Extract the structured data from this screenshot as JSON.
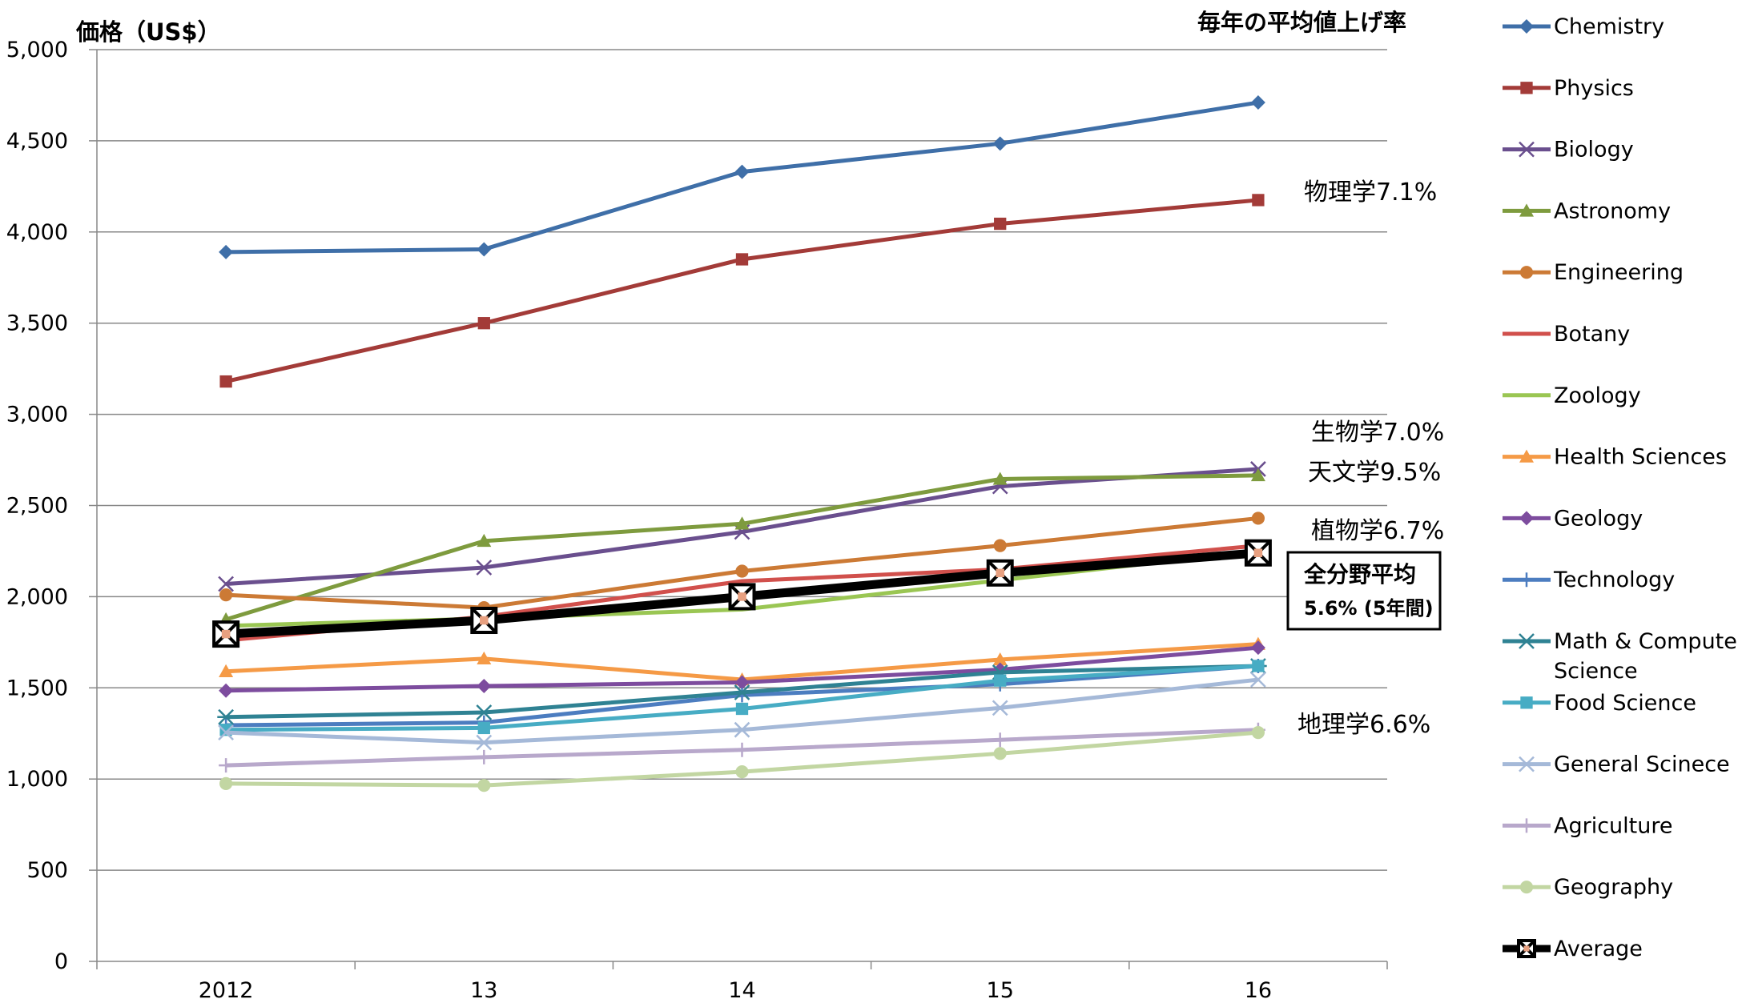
{
  "chart_data": {
    "type": "line",
    "ylabel": "価格（US$）",
    "legend_title": "毎年の平均値上げ率",
    "legend_position": "right",
    "categories": [
      "2012",
      "13",
      "14",
      "15",
      "16"
    ],
    "ylim": [
      0,
      5000
    ],
    "yticks": [
      "0",
      "500",
      "1,000",
      "1,500",
      "2,000",
      "2,500",
      "3,000",
      "3,500",
      "4,000",
      "4,500",
      "5,000"
    ],
    "grid": true,
    "series": [
      {
        "name": "Chemistry",
        "color": "#3F6FA8",
        "marker": "diamond",
        "values": [
          3890,
          3905,
          4330,
          4485,
          4710
        ]
      },
      {
        "name": "Physics",
        "color": "#A33B38",
        "marker": "square",
        "values": [
          3180,
          3500,
          3850,
          4045,
          4175
        ]
      },
      {
        "name": "Biology",
        "color": "#6A4F8E",
        "marker": "x",
        "values": [
          2070,
          2160,
          2355,
          2605,
          2700
        ]
      },
      {
        "name": "Astronomy",
        "color": "#7E9B3E",
        "marker": "triangle",
        "values": [
          1875,
          2305,
          2400,
          2645,
          2665
        ]
      },
      {
        "name": "Engineering",
        "color": "#CC7A35",
        "marker": "circle",
        "values": [
          2010,
          1940,
          2140,
          2280,
          2430
        ]
      },
      {
        "name": "Botany",
        "color": "#D1504C",
        "marker": "none",
        "values": [
          1760,
          1890,
          2085,
          2150,
          2280
        ]
      },
      {
        "name": "Zoology",
        "color": "#9AC653",
        "marker": "none",
        "values": [
          1840,
          1880,
          1930,
          2090,
          2250
        ]
      },
      {
        "name": "Health Sciences",
        "color": "#F59A46",
        "marker": "triangle",
        "values": [
          1590,
          1660,
          1545,
          1655,
          1740
        ]
      },
      {
        "name": "Geology",
        "color": "#7D4C9E",
        "marker": "diamond",
        "values": [
          1485,
          1510,
          1530,
          1600,
          1720
        ]
      },
      {
        "name": "Technology",
        "color": "#4C7DC0",
        "marker": "plus",
        "values": [
          1295,
          1310,
          1460,
          1520,
          1620
        ]
      },
      {
        "name": "Math & Computer Science",
        "color": "#2F8293",
        "marker": "star",
        "values": [
          1340,
          1365,
          1475,
          1585,
          1620
        ]
      },
      {
        "name": "Food Science",
        "color": "#47ACC4",
        "marker": "square",
        "values": [
          1270,
          1280,
          1385,
          1540,
          1620
        ]
      },
      {
        "name": "General Scinece",
        "color": "#A5B9D8",
        "marker": "x",
        "values": [
          1255,
          1200,
          1270,
          1390,
          1545
        ]
      },
      {
        "name": "Agriculture",
        "color": "#B8A8CB",
        "marker": "plus",
        "values": [
          1075,
          1120,
          1160,
          1215,
          1270
        ]
      },
      {
        "name": "Geography",
        "color": "#C2D6A2",
        "marker": "circle",
        "values": [
          975,
          965,
          1040,
          1140,
          1255
        ]
      },
      {
        "name": "Average",
        "color": "#000000",
        "marker": "boxx",
        "values": [
          1795,
          1870,
          2000,
          2130,
          2240
        ]
      }
    ],
    "annotations": [
      {
        "text": "物理学7.1%",
        "target": "Physics"
      },
      {
        "text": "生物学7.0%",
        "target": "Biology"
      },
      {
        "text": "天文学9.5%",
        "target": "Astronomy"
      },
      {
        "text": "植物学6.7%",
        "target": "Botany"
      },
      {
        "text": "地理学6.6%",
        "target": "Geography"
      },
      {
        "line1": "全分野平均",
        "line2": "5.6% (5年間)",
        "target": "Average"
      }
    ]
  }
}
